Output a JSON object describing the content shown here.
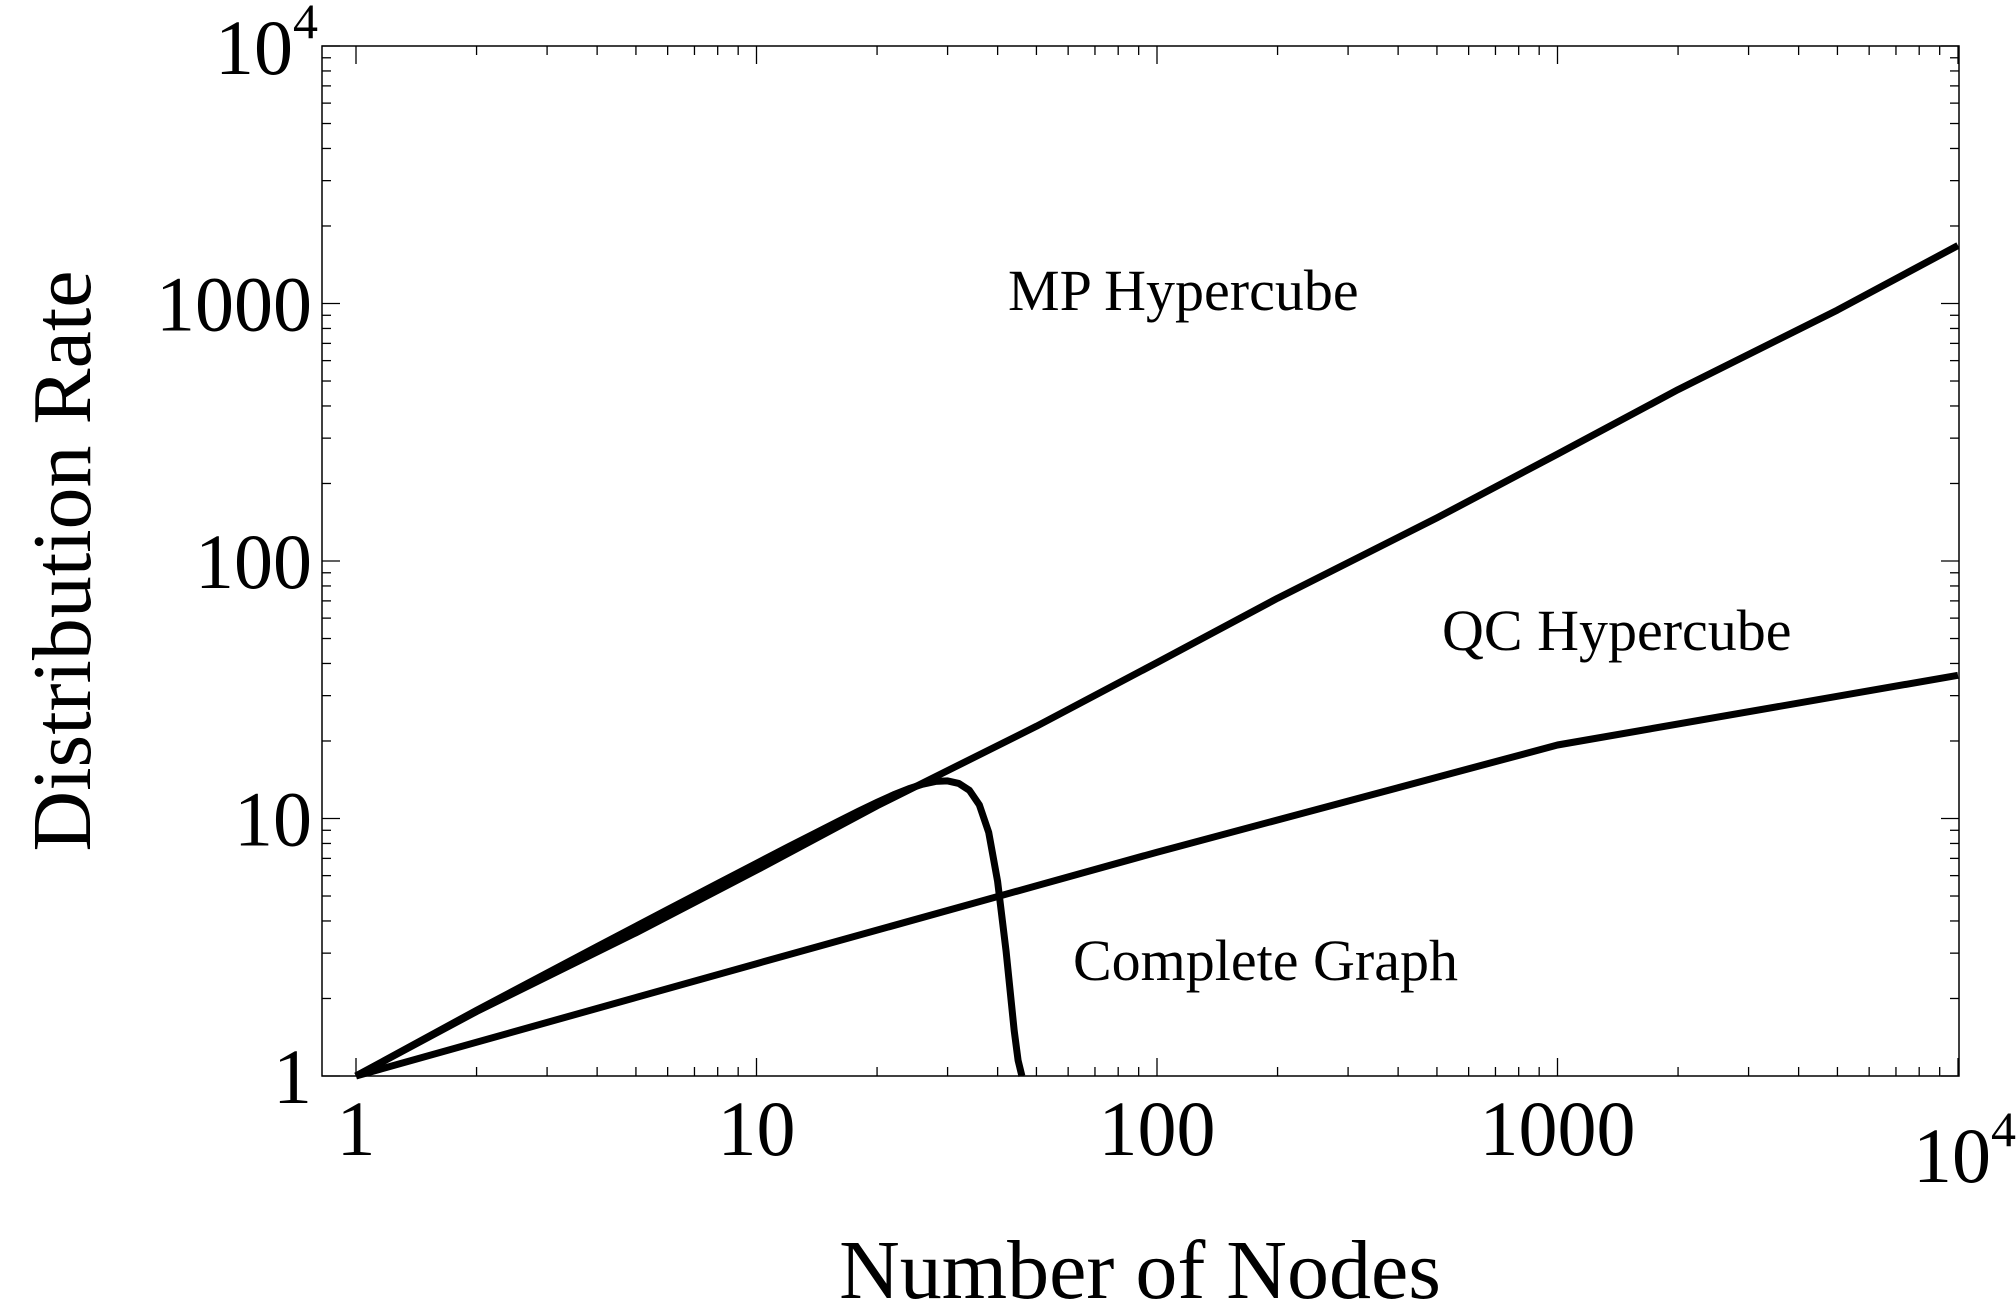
{
  "chart_data": {
    "type": "line",
    "title": "",
    "xlabel": "Number of Nodes",
    "ylabel": "Distribution Rate",
    "xscale": "log",
    "yscale": "log",
    "xlim": [
      1,
      10000
    ],
    "ylim": [
      1,
      10000
    ],
    "grid": false,
    "x_ticks": [
      {
        "value": 1,
        "label": "1"
      },
      {
        "value": 10,
        "label": "10"
      },
      {
        "value": 100,
        "label": "100"
      },
      {
        "value": 1000,
        "label": "1000"
      },
      {
        "value": 10000,
        "label": "10",
        "sup": "4"
      }
    ],
    "y_ticks": [
      {
        "value": 1,
        "label": "1"
      },
      {
        "value": 10,
        "label": "10"
      },
      {
        "value": 100,
        "label": "100"
      },
      {
        "value": 1000,
        "label": "1000"
      },
      {
        "value": 10000,
        "label": "10",
        "sup": "4"
      }
    ],
    "series": [
      {
        "x": [
          1,
          2,
          5,
          10,
          20,
          50,
          100,
          200,
          500,
          1000,
          2000,
          5000,
          10000
        ],
        "y": [
          1,
          1.78,
          3.6,
          6.3,
          11.2,
          22.8,
          40.3,
          71.7,
          147,
          260,
          463,
          943,
          1680
        ]
      },
      {
        "x": [
          1,
          10,
          100,
          1000,
          10000
        ],
        "y": [
          1,
          2.73,
          7.4,
          19.3,
          36
        ]
      },
      {
        "x": [
          1,
          2,
          4,
          6,
          8,
          10,
          12,
          14,
          16,
          18,
          20,
          22,
          24,
          26,
          28,
          30,
          32,
          34,
          36,
          38,
          40,
          42,
          44,
          45,
          46
        ],
        "y": [
          1,
          1.8,
          3.18,
          4.43,
          5.59,
          6.7,
          7.76,
          8.77,
          9.74,
          10.68,
          11.56,
          12.36,
          13.05,
          13.59,
          13.93,
          14.0,
          13.69,
          12.87,
          11.3,
          8.83,
          5.7,
          3.05,
          1.5,
          1.15,
          1
        ]
      }
    ],
    "annotations": [
      {
        "text": "MP Hypercube"
      },
      {
        "text": "QC Hypercube"
      },
      {
        "text": "Complete Graph"
      }
    ]
  }
}
